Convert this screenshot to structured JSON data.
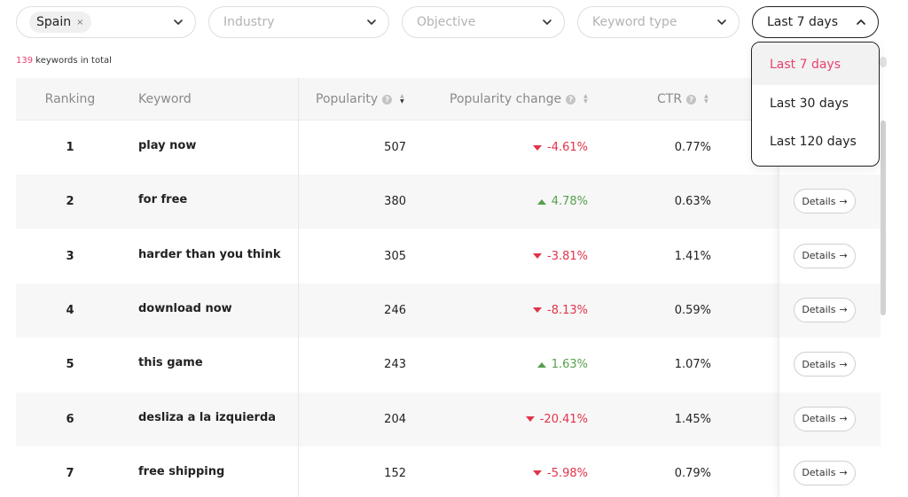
{
  "filters": {
    "country_tag": "Spain",
    "country_tag_remove": "×",
    "industry_placeholder": "Industry",
    "objective_placeholder": "Objective",
    "keyword_type_placeholder": "Keyword type",
    "date_range_value": "Last 7 days"
  },
  "summary": {
    "total_count": "139",
    "total_text": " keywords in total"
  },
  "columns": {
    "ranking": "Ranking",
    "keyword": "Keyword",
    "popularity": "Popularity",
    "popularity_change": "Popularity change",
    "ctr": "CTR",
    "help_glyph": "?"
  },
  "rows": [
    {
      "rank": "1",
      "keyword": "play now",
      "popularity": "507",
      "change": "-4.61%",
      "direction": "down",
      "ctr": "0.77%"
    },
    {
      "rank": "2",
      "keyword": "for free",
      "popularity": "380",
      "change": "4.78%",
      "direction": "up",
      "ctr": "0.63%"
    },
    {
      "rank": "3",
      "keyword": "harder than you think",
      "popularity": "305",
      "change": "-3.81%",
      "direction": "down",
      "ctr": "1.41%"
    },
    {
      "rank": "4",
      "keyword": "download now",
      "popularity": "246",
      "change": "-8.13%",
      "direction": "down",
      "ctr": "0.59%"
    },
    {
      "rank": "5",
      "keyword": "this game",
      "popularity": "243",
      "change": "1.63%",
      "direction": "up",
      "ctr": "1.07%"
    },
    {
      "rank": "6",
      "keyword": "desliza a la izquierda",
      "popularity": "204",
      "change": "-20.41%",
      "direction": "down",
      "ctr": "1.45%"
    },
    {
      "rank": "7",
      "keyword": "free shipping",
      "popularity": "152",
      "change": "-5.98%",
      "direction": "down",
      "ctr": "0.79%"
    }
  ],
  "details_label": "Details",
  "details_arrow": "→",
  "date_menu": {
    "options": [
      "Last 7 days",
      "Last 30 days",
      "Last 120 days"
    ],
    "selected": "Last 7 days"
  },
  "colors": {
    "accent_pink": "#e8426e",
    "negative_red": "#e0344a",
    "positive_green": "#56a04c"
  },
  "icons": {
    "filter_chevron": "chevron-down-icon",
    "date_chevron": "chevron-up-icon",
    "help": "help-circle-icon",
    "sort": "sort-icon",
    "change_down": "triangle-down-icon",
    "change_up": "triangle-up-icon"
  }
}
